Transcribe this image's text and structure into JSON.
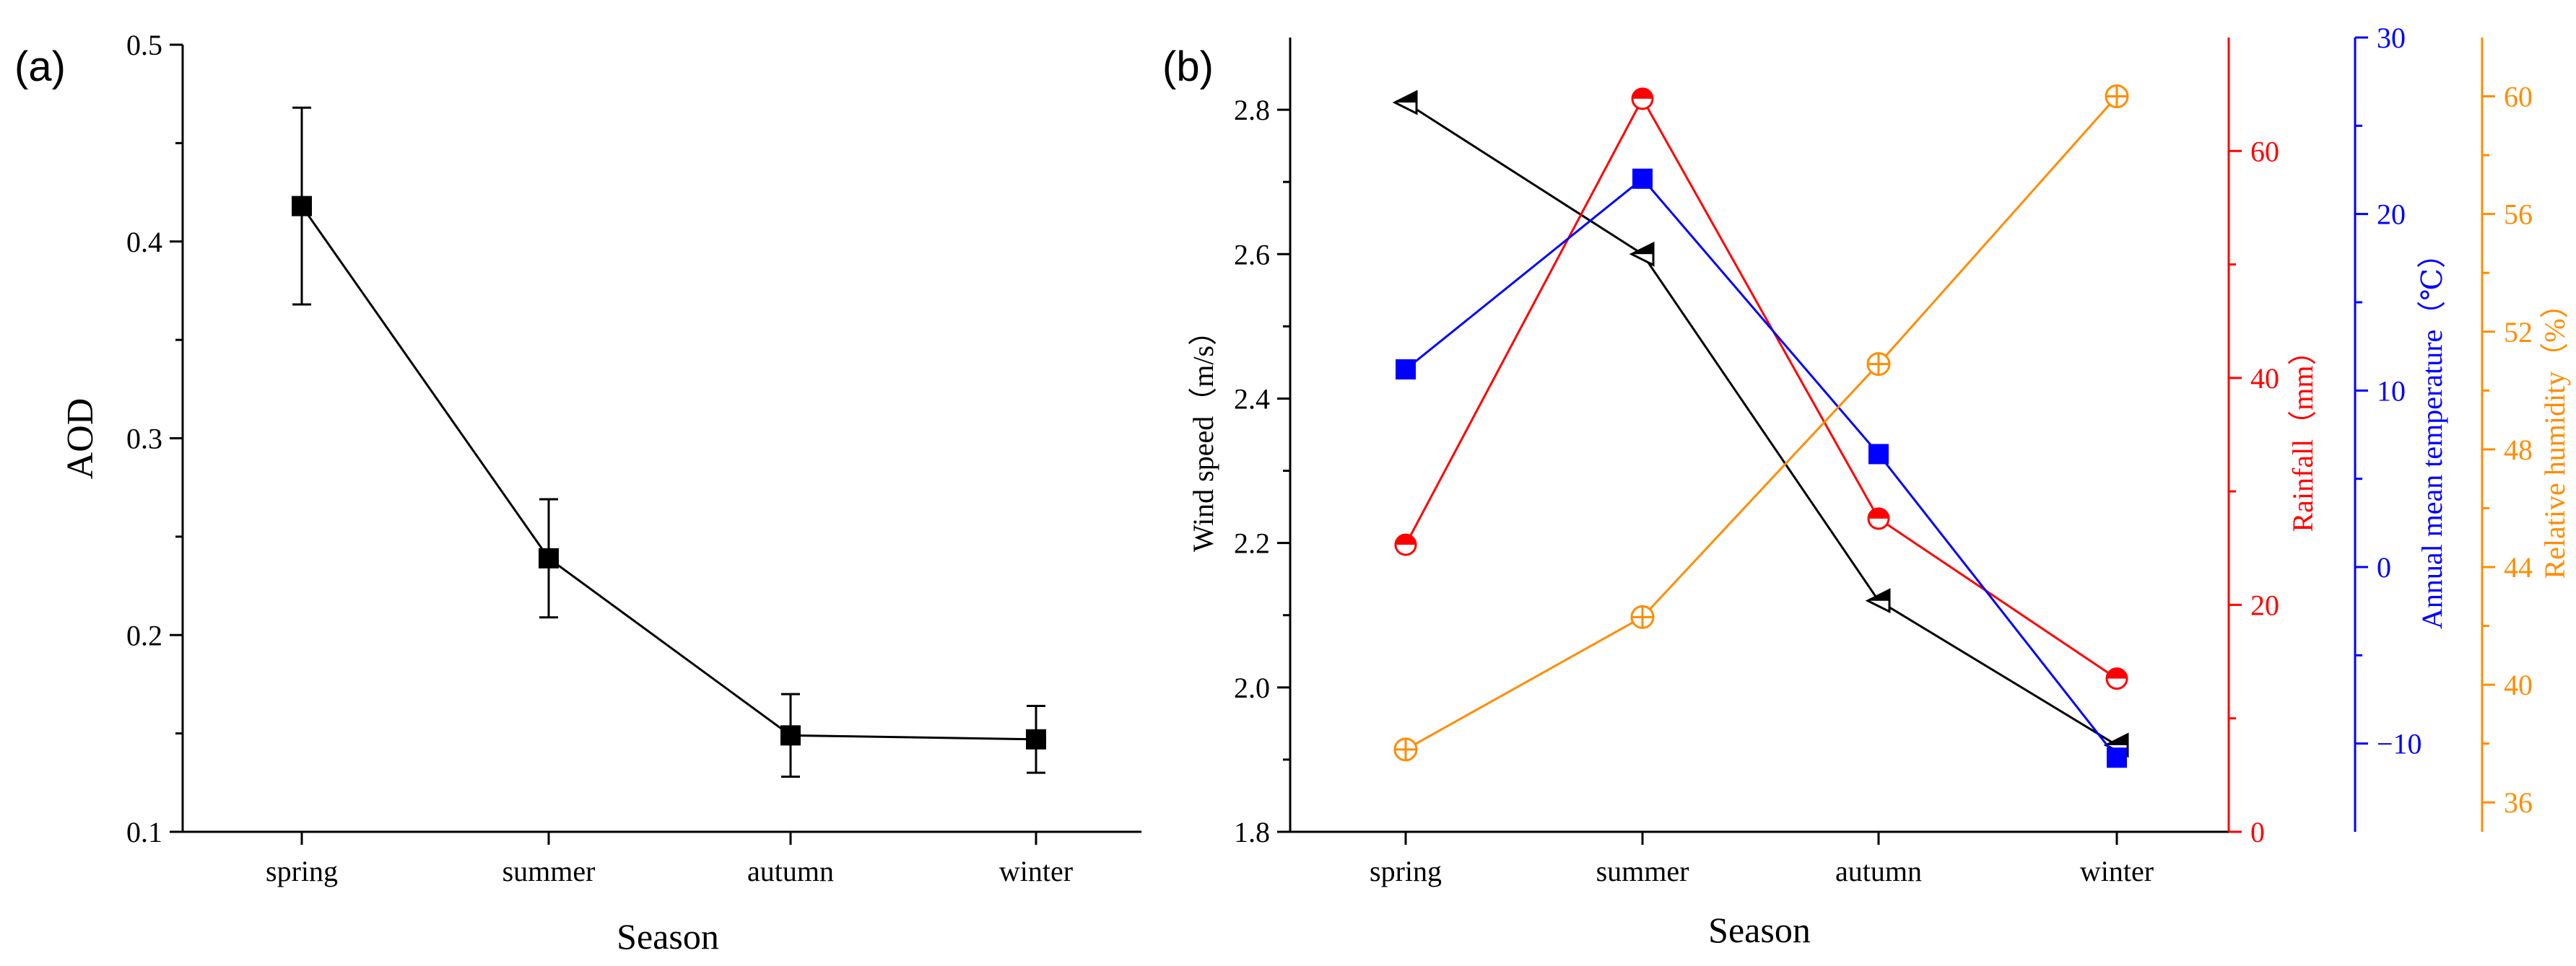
{
  "panel_labels": {
    "a": "(a)",
    "b": "(b)"
  },
  "chart_data": [
    {
      "type": "line",
      "panel": "a",
      "title": "",
      "xlabel": "Season",
      "ylabel": "AOD",
      "categories": [
        "spring",
        "summer",
        "autumn",
        "winter"
      ],
      "ylim": [
        0.1,
        0.5
      ],
      "yticks": [
        "0.1",
        "0.2",
        "0.3",
        "0.4",
        "0.5"
      ],
      "series": [
        {
          "name": "AOD",
          "color": "#000000",
          "marker": "square",
          "values": [
            0.418,
            0.239,
            0.149,
            0.147
          ],
          "err_low": [
            0.368,
            0.209,
            0.128,
            0.13
          ],
          "err_high": [
            0.468,
            0.269,
            0.17,
            0.164
          ]
        }
      ]
    },
    {
      "type": "line",
      "panel": "b",
      "title": "",
      "xlabel": "Season",
      "categories": [
        "spring",
        "summer",
        "autumn",
        "winter"
      ],
      "axes": [
        {
          "id": "wind",
          "label": "Wind speed（m/s）",
          "color": "#000000",
          "ylim": [
            1.8,
            2.9
          ],
          "ticks": [
            "1.8",
            "2.0",
            "2.2",
            "2.4",
            "2.6",
            "2.8"
          ]
        },
        {
          "id": "rain",
          "label": "Rainfall（mm）",
          "color": "#ff0000",
          "ylim": [
            0,
            70
          ],
          "ticks": [
            "0",
            "20",
            "40",
            "60"
          ]
        },
        {
          "id": "temp",
          "label": "Annual mean temperature（℃）",
          "color": "#0000ff",
          "ylim": [
            -15,
            30
          ],
          "ticks": [
            "−10",
            "0",
            "10",
            "20",
            "30"
          ]
        },
        {
          "id": "hum",
          "label": "Relative humidity（%）",
          "color": "#ff8c00",
          "ylim": [
            35,
            62
          ],
          "ticks": [
            "36",
            "40",
            "44",
            "48",
            "52",
            "56",
            "60"
          ]
        }
      ],
      "series": [
        {
          "name": "Wind speed",
          "axis": "wind",
          "color": "#000000",
          "marker": "half-triangle-left",
          "values": [
            2.81,
            2.6,
            2.12,
            1.92
          ]
        },
        {
          "name": "Rainfall",
          "axis": "rain",
          "color": "#ff0000",
          "marker": "half-circle",
          "values": [
            25.3,
            64.6,
            27.6,
            13.5
          ]
        },
        {
          "name": "Annual mean temperature",
          "axis": "temp",
          "color": "#0000ff",
          "marker": "square",
          "values": [
            11.2,
            22.0,
            6.4,
            -10.8
          ]
        },
        {
          "name": "Relative humidity",
          "axis": "hum",
          "color": "#ff8c00",
          "marker": "circle-plus",
          "values": [
            37.8,
            42.3,
            50.9,
            60.0
          ]
        }
      ]
    }
  ]
}
